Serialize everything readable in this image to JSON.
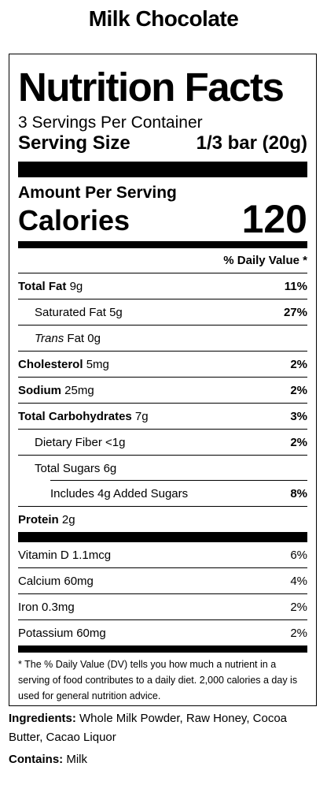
{
  "product_title": "Milk Chocolate",
  "label": {
    "heading": "Nutrition Facts",
    "servings_per_container": "3 Servings Per Container",
    "serving_size_label": "Serving Size",
    "serving_size_value": "1/3 bar (20g)",
    "amount_per_serving": "Amount Per Serving",
    "calories_label": "Calories",
    "calories_value": "120",
    "dv_header": "% Daily Value *",
    "nutrients": {
      "total_fat": {
        "name": "Total Fat",
        "amount": "9g",
        "dv": "11%"
      },
      "saturated_fat": {
        "name": "Saturated Fat",
        "amount": "5g",
        "dv": "27%"
      },
      "trans_fat": {
        "name": "Trans",
        "suffix": "Fat",
        "amount": "0g"
      },
      "cholesterol": {
        "name": "Cholesterol",
        "amount": "5mg",
        "dv": "2%"
      },
      "sodium": {
        "name": "Sodium",
        "amount": "25mg",
        "dv": "2%"
      },
      "total_carbs": {
        "name": "Total Carbohydrates",
        "amount": "7g",
        "dv": "3%"
      },
      "dietary_fiber": {
        "name": "Dietary Fiber",
        "amount": "<1g",
        "dv": "2%"
      },
      "total_sugars": {
        "name": "Total Sugars",
        "amount": "6g"
      },
      "added_sugars": {
        "text": "Includes 4g Added Sugars",
        "dv": "8%"
      },
      "protein": {
        "name": "Protein",
        "amount": "2g"
      }
    },
    "vitamins": [
      {
        "name": "Vitamin D",
        "amount": "1.1mcg",
        "dv": "6%"
      },
      {
        "name": "Calcium",
        "amount": "60mg",
        "dv": "4%"
      },
      {
        "name": "Iron",
        "amount": "0.3mg",
        "dv": "2%"
      },
      {
        "name": "Potassium",
        "amount": "60mg",
        "dv": "2%"
      }
    ],
    "footnote": "* The % Daily Value (DV) tells you how much a nutrient in a serving of food contributes to a daily diet. 2,000 calories a day is used for general nutrition advice."
  },
  "ingredients": {
    "label": "Ingredients:",
    "text": "Whole Milk Powder, Raw Honey, Cocoa Butter, Cacao Liquor"
  },
  "contains": {
    "label": "Contains:",
    "text": "Milk"
  }
}
